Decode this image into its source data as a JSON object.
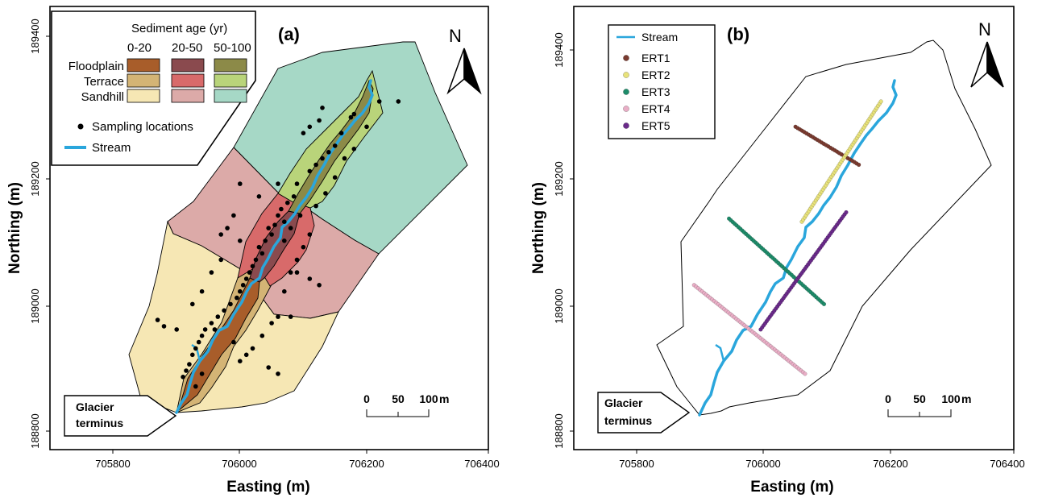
{
  "figure": {
    "panel_a_label": "(a)",
    "panel_b_label": "(b)",
    "xlabel": "Easting (m)",
    "ylabel": "Northing (m)",
    "x_ticks": [
      "705800",
      "706000",
      "706200",
      "706400"
    ],
    "y_ticks": [
      "189400",
      "189200",
      "189000",
      "188800"
    ],
    "north": "N",
    "glacier_line1": "Glacier",
    "glacier_line2": "terminus",
    "scale_labels": [
      "0",
      "50",
      "100"
    ],
    "scale_unit": "m"
  },
  "legend_a": {
    "title": "Sediment age (yr)",
    "columns": [
      "0-20",
      "20-50",
      "50-100"
    ],
    "rows": [
      {
        "label": "Floodplain",
        "colors": [
          "#a85d2a",
          "#8a4a4e",
          "#8c8a48"
        ]
      },
      {
        "label": "Terrace",
        "colors": [
          "#d4b475",
          "#d86a6a",
          "#b9d47a"
        ]
      },
      {
        "label": "Sandhill",
        "colors": [
          "#f6e7b4",
          "#dcaaa8",
          "#a6d8c6"
        ]
      }
    ],
    "sampling": "Sampling locations",
    "stream": "Stream"
  },
  "legend_b": {
    "stream": "Stream",
    "items": [
      {
        "label": "ERT1",
        "color": "#7a3b30"
      },
      {
        "label": "ERT2",
        "color": "#e8e27a"
      },
      {
        "label": "ERT3",
        "color": "#1e8c6a"
      },
      {
        "label": "ERT4",
        "color": "#e9aec6"
      },
      {
        "label": "ERT5",
        "color": "#6a2a8a"
      }
    ]
  },
  "chart_data": {
    "type": "map",
    "xlim": [
      705700,
      706400
    ],
    "ylim": [
      188780,
      189480
    ],
    "stream_color": "#2aa6dc",
    "sampling_points": [
      [
        706220,
        189330
      ],
      [
        706250,
        189330
      ],
      [
        706200,
        189290
      ],
      [
        706180,
        189310
      ],
      [
        706175,
        189305
      ],
      [
        706130,
        189320
      ],
      [
        706125,
        189300
      ],
      [
        706110,
        189290
      ],
      [
        706100,
        189280
      ],
      [
        706150,
        189260
      ],
      [
        706140,
        189250
      ],
      [
        706130,
        189240
      ],
      [
        706120,
        189230
      ],
      [
        706110,
        189220
      ],
      [
        706160,
        189280
      ],
      [
        706090,
        189200
      ],
      [
        706085,
        189180
      ],
      [
        706075,
        189170
      ],
      [
        706065,
        189160
      ],
      [
        706060,
        189150
      ],
      [
        706070,
        189140
      ],
      [
        706055,
        189135
      ],
      [
        706045,
        189130
      ],
      [
        706050,
        189120
      ],
      [
        706040,
        189110
      ],
      [
        706030,
        189100
      ],
      [
        706035,
        189090
      ],
      [
        706025,
        189080
      ],
      [
        706020,
        189070
      ],
      [
        706015,
        189060
      ],
      [
        706010,
        189050
      ],
      [
        706005,
        189040
      ],
      [
        706000,
        189030
      ],
      [
        705995,
        189020
      ],
      [
        705985,
        189010
      ],
      [
        705975,
        189000
      ],
      [
        705965,
        188990
      ],
      [
        705955,
        188980
      ],
      [
        705945,
        188970
      ],
      [
        705940,
        188960
      ],
      [
        705935,
        188950
      ],
      [
        705930,
        188940
      ],
      [
        705925,
        188930
      ],
      [
        705920,
        188915
      ],
      [
        705915,
        188905
      ],
      [
        705910,
        188895
      ],
      [
        705960,
        188970
      ],
      [
        705990,
        188950
      ],
      [
        706010,
        188930
      ],
      [
        706000,
        188920
      ],
      [
        706020,
        188940
      ],
      [
        706035,
        188960
      ],
      [
        706050,
        188980
      ],
      [
        706060,
        188990
      ],
      [
        706070,
        189030
      ],
      [
        706080,
        189060
      ],
      [
        706090,
        189080
      ],
      [
        706100,
        189100
      ],
      [
        706110,
        189120
      ],
      [
        706060,
        189200
      ],
      [
        706030,
        189180
      ],
      [
        706000,
        189200
      ],
      [
        705990,
        189150
      ],
      [
        705980,
        189130
      ],
      [
        705970,
        189120
      ],
      [
        706000,
        189110
      ],
      [
        705970,
        189080
      ],
      [
        705955,
        189060
      ],
      [
        705940,
        189030
      ],
      [
        705925,
        189010
      ],
      [
        705900,
        188970
      ],
      [
        705880,
        188975
      ],
      [
        705870,
        188985
      ],
      [
        705930,
        188880
      ],
      [
        705940,
        188900
      ],
      [
        706080,
        188990
      ],
      [
        706060,
        188900
      ],
      [
        706045,
        188910
      ],
      [
        706150,
        189210
      ],
      [
        706165,
        189240
      ],
      [
        706180,
        189255
      ],
      [
        706135,
        189185
      ],
      [
        706120,
        189165
      ],
      [
        706095,
        189150
      ],
      [
        706080,
        189130
      ],
      [
        706070,
        189110
      ],
      [
        706090,
        189060
      ],
      [
        706110,
        189050
      ],
      [
        706125,
        189040
      ]
    ],
    "ert_lines": [
      {
        "name": "ERT1",
        "start": [
          706050,
          189290
        ],
        "end": [
          706150,
          189230
        ]
      },
      {
        "name": "ERT2",
        "start": [
          706060,
          189140
        ],
        "end": [
          706185,
          189330
        ]
      },
      {
        "name": "ERT3",
        "start": [
          705945,
          189145
        ],
        "end": [
          706095,
          189010
        ]
      },
      {
        "name": "ERT4",
        "start": [
          705890,
          189040
        ],
        "end": [
          706065,
          188900
        ]
      },
      {
        "name": "ERT5",
        "start": [
          705995,
          188970
        ],
        "end": [
          706130,
          189155
        ]
      }
    ]
  }
}
